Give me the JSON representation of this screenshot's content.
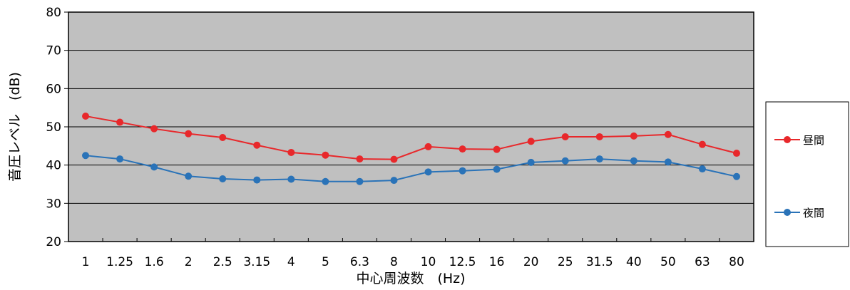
{
  "chart_data": {
    "type": "line",
    "categories": [
      "1",
      "1.25",
      "1.6",
      "2",
      "2.5",
      "3.15",
      "4",
      "5",
      "6.3",
      "8",
      "10",
      "12.5",
      "16",
      "20",
      "25",
      "31.5",
      "40",
      "50",
      "63",
      "80"
    ],
    "series": [
      {
        "name": "昼間",
        "color": "#e8282b",
        "values": [
          52.8,
          51.2,
          49.5,
          48.2,
          47.2,
          45.2,
          43.3,
          42.6,
          41.6,
          41.5,
          44.8,
          44.2,
          44.1,
          46.2,
          47.4,
          47.4,
          47.6,
          48.0,
          45.4,
          43.1
        ]
      },
      {
        "name": "夜間",
        "color": "#2a73b8",
        "values": [
          42.5,
          41.6,
          39.5,
          37.1,
          36.4,
          36.1,
          36.3,
          35.7,
          35.7,
          36.0,
          38.2,
          38.5,
          38.9,
          40.7,
          41.1,
          41.6,
          41.1,
          40.8,
          39.0,
          37.0
        ]
      }
    ],
    "xlabel": "中心周波数　(Hz)",
    "ylabel": "音圧レベル　(dB)",
    "ylim": [
      20,
      80
    ],
    "yticks": [
      20,
      30,
      40,
      50,
      60,
      70,
      80
    ],
    "grid": true,
    "legend": "right",
    "plot_background": "#c0c0c0"
  }
}
